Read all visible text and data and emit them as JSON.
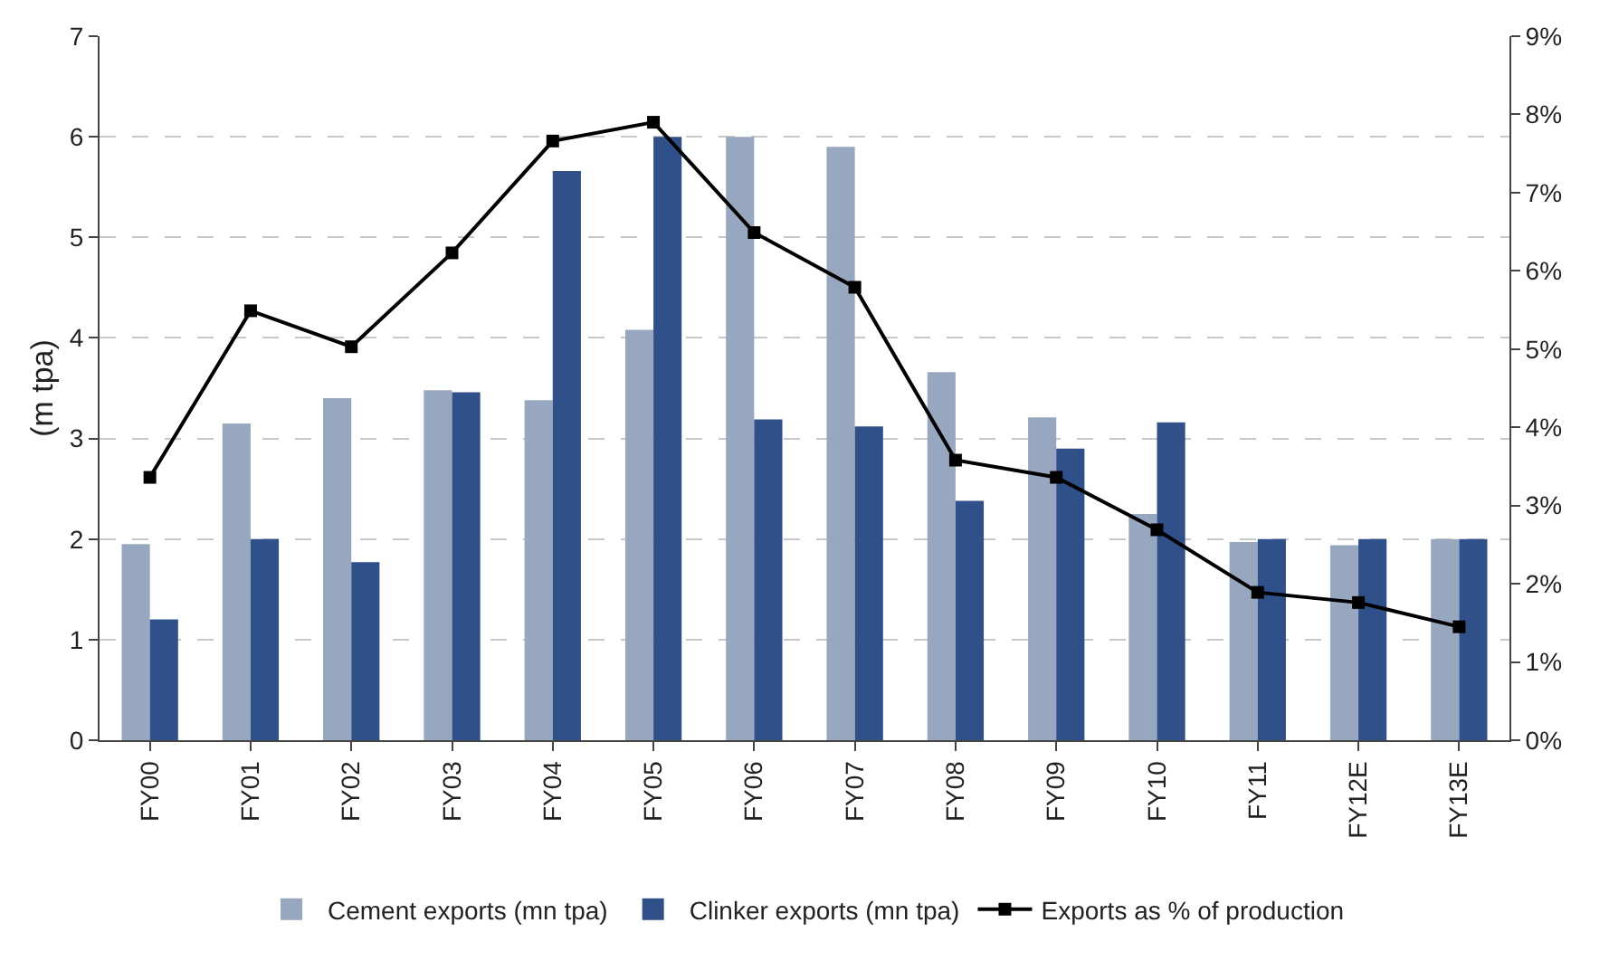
{
  "chart_data": {
    "type": "bar",
    "ylabel": "(m tpa)",
    "categories": [
      "FY00",
      "FY01",
      "FY02",
      "FY03",
      "FY04",
      "FY05",
      "FY06",
      "FY07",
      "FY08",
      "FY09",
      "FY10",
      "FY11",
      "FY12E",
      "FY13E"
    ],
    "series": [
      {
        "name": "Cement exports (mn tpa)",
        "color": "#97a7bf",
        "values": [
          1.95,
          3.15,
          3.4,
          3.48,
          3.38,
          4.08,
          6.0,
          5.9,
          3.66,
          3.21,
          2.25,
          1.97,
          1.94,
          2.0
        ]
      },
      {
        "name": "Clinker exports (mn tpa)",
        "color": "#2f5089",
        "values": [
          1.2,
          2.0,
          1.77,
          3.46,
          5.66,
          6.0,
          3.19,
          3.12,
          2.38,
          2.9,
          3.16,
          2.0,
          2.0,
          2.0
        ]
      },
      {
        "name": "Exports as % of production",
        "type": "line",
        "axis": "y2",
        "color": "#000000",
        "marker": "square",
        "values": [
          3.36,
          5.49,
          5.03,
          6.23,
          7.66,
          7.9,
          6.49,
          5.79,
          3.58,
          3.36,
          2.69,
          1.89,
          1.76,
          1.45
        ]
      }
    ],
    "ylim": [
      0,
      7
    ],
    "yticks": [
      0,
      1,
      2,
      3,
      4,
      5,
      6,
      7
    ],
    "y2lim": [
      0,
      9
    ],
    "y2ticks": [
      {
        "value": 0,
        "label": "0%"
      },
      {
        "value": 1,
        "label": "1%"
      },
      {
        "value": 2,
        "label": "2%"
      },
      {
        "value": 3,
        "label": "3%"
      },
      {
        "value": 4,
        "label": "4%"
      },
      {
        "value": 5,
        "label": "5%"
      },
      {
        "value": 6,
        "label": "6%"
      },
      {
        "value": 7,
        "label": "7%"
      },
      {
        "value": 8,
        "label": "8%"
      },
      {
        "value": 9,
        "label": "9%"
      }
    ],
    "grid": "y",
    "legend": "bottom"
  }
}
